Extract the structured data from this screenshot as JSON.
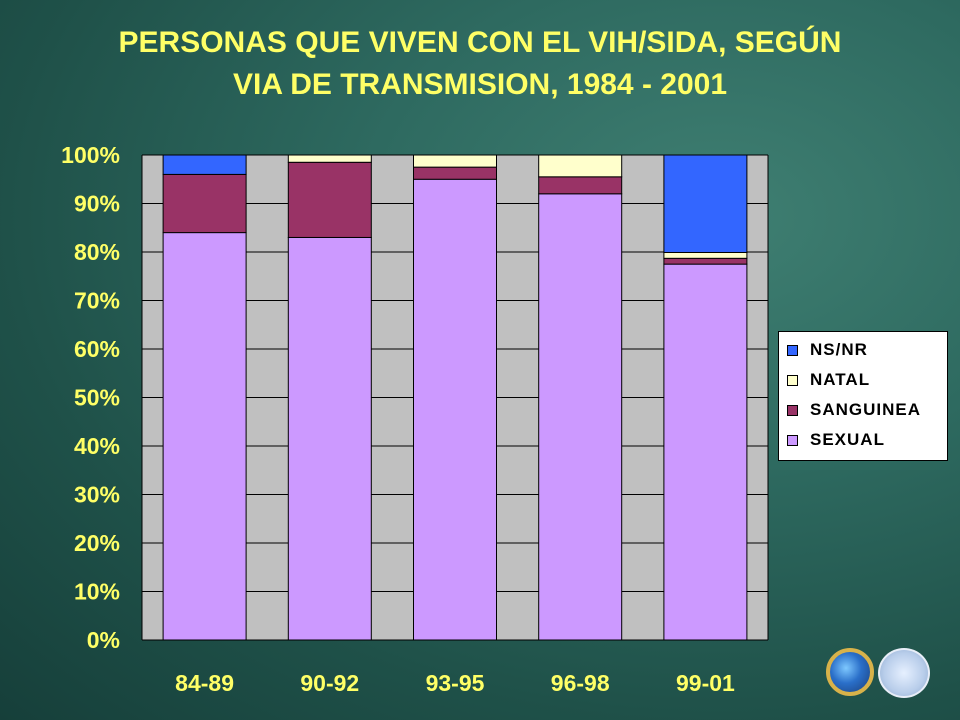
{
  "title_lines": [
    "PERSONAS QUE VIVEN CON EL VIH/SIDA, SEGÚN",
    "VIA DE TRANSMISION, 1984 - 2001"
  ],
  "colors": {
    "title": "#ffff66",
    "plot_bg": "#c0c0c0",
    "grid": "#000000",
    "axis_text": "#ffff66"
  },
  "chart_data": {
    "type": "bar",
    "stacked": true,
    "categories": [
      "84-89",
      "90-92",
      "93-95",
      "96-98",
      "99-01"
    ],
    "series": [
      {
        "name": "SEXUAL",
        "color": "#cc99ff",
        "values": [
          84,
          83,
          95,
          92,
          77.5
        ]
      },
      {
        "name": "SANGUINEA",
        "color": "#993366",
        "values": [
          12,
          15.5,
          2.5,
          3.5,
          1.2
        ]
      },
      {
        "name": "NATAL",
        "color": "#ffffcc",
        "values": [
          0,
          1.5,
          2.5,
          4.5,
          1.2
        ]
      },
      {
        "name": "NS/NR",
        "color": "#3366ff",
        "values": [
          4,
          0,
          0,
          0,
          20.1
        ]
      }
    ],
    "ylim": [
      0,
      100
    ],
    "yticks": [
      "0%",
      "10%",
      "20%",
      "30%",
      "40%",
      "50%",
      "60%",
      "70%",
      "80%",
      "90%",
      "100%"
    ],
    "grid": true,
    "legend_position": "right",
    "legend_order": [
      "NS/NR",
      "NATAL",
      "SANGUINEA",
      "SEXUAL"
    ]
  }
}
